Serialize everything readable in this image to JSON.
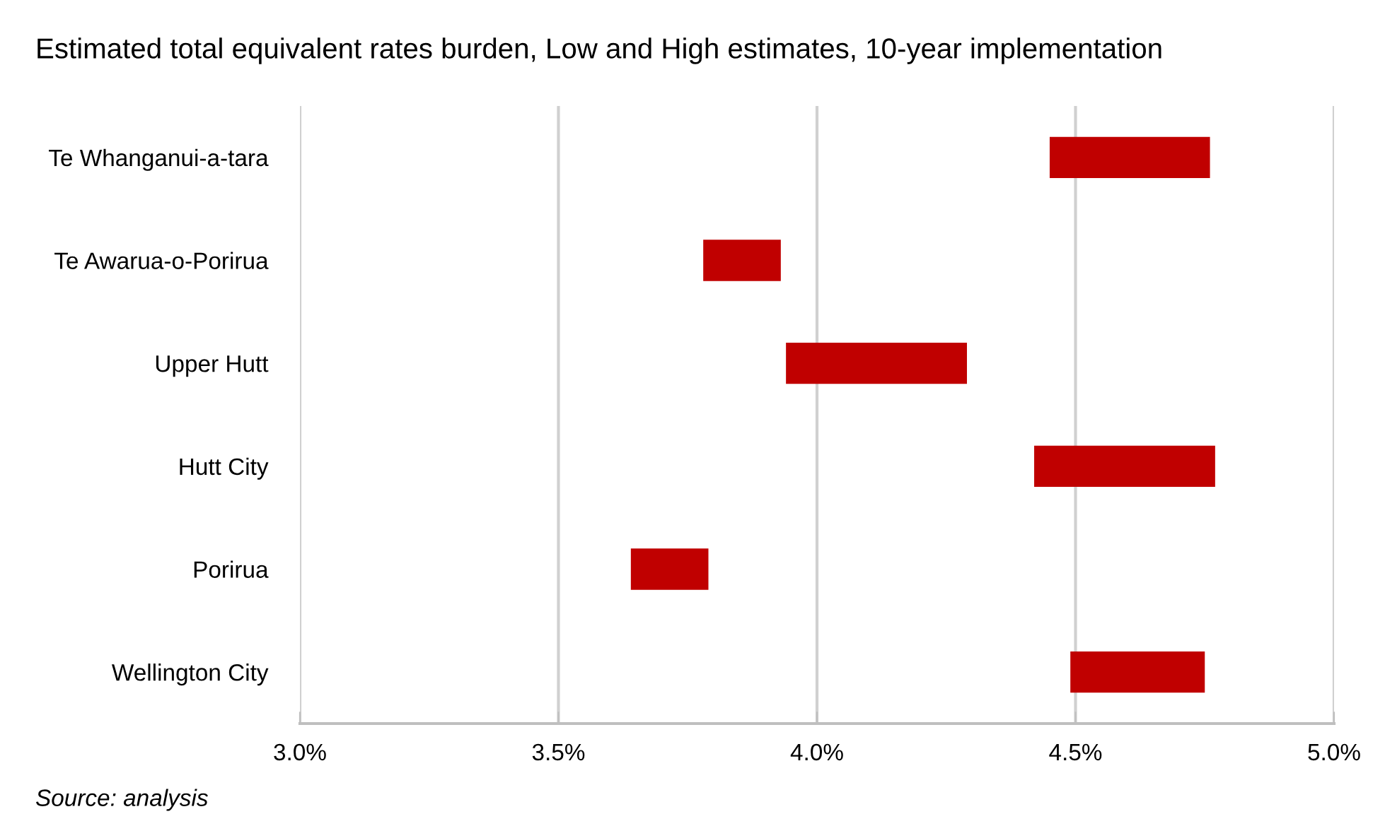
{
  "chart_data": {
    "type": "bar",
    "orientation": "horizontal",
    "title": "Estimated total equivalent rates burden, Low and High estimates, 10-year implementation",
    "categories": [
      "Te Whanganui-a-tara",
      "Te Awarua-o-Porirua",
      "Upper Hutt",
      "Hutt City",
      "Porirua",
      "Wellington City"
    ],
    "base": [
      4.45,
      3.78,
      3.94,
      4.42,
      3.64,
      4.49
    ],
    "values": [
      0.31,
      0.15,
      0.35,
      0.35,
      0.15,
      0.26
    ],
    "color": "#c00000",
    "xlim": [
      3.0,
      5.0
    ],
    "xticks": [
      {
        "value": 3.0,
        "label": "3.0%"
      },
      {
        "value": 3.5,
        "label": "3.5%"
      },
      {
        "value": 4.0,
        "label": "4.0%"
      },
      {
        "value": 4.5,
        "label": "4.5%"
      },
      {
        "value": 5.0,
        "label": "5.0%"
      }
    ],
    "grid": "x",
    "legend": false,
    "annotations": [
      "Source: analysis"
    ]
  }
}
